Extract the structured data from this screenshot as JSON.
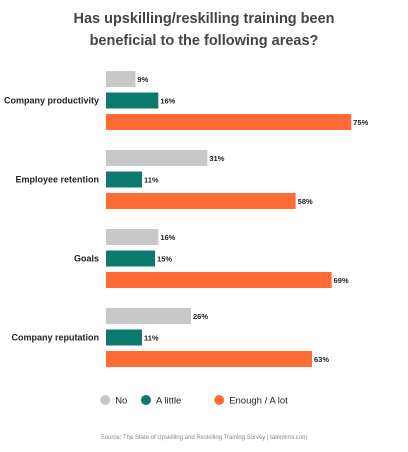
{
  "colors": {
    "no": "#c8c8c8",
    "a_little": "#0b7a6d",
    "enough": "#ff6a35"
  },
  "chart_data": {
    "type": "bar",
    "orientation": "horizontal",
    "title_lines": [
      "Has upskilling/reskilling training been",
      "beneficial to the following areas?"
    ],
    "categories": [
      "Company productivity",
      "Employee retention",
      "Goals",
      "Company reputation"
    ],
    "series": [
      {
        "name": "No",
        "values": [
          9,
          31,
          16,
          26
        ],
        "color": "#c8c8c8"
      },
      {
        "name": "A little",
        "values": [
          16,
          11,
          15,
          11
        ],
        "color": "#0b7a6d"
      },
      {
        "name": "Enough / A lot",
        "values": [
          75,
          58,
          69,
          63
        ],
        "color": "#ff6a35"
      }
    ],
    "value_suffix": "%",
    "xlim": [
      0,
      100
    ],
    "grid": false,
    "legend_position": "bottom-center",
    "source": "Source: The State of Upskilling and Reskilling Training Survey  |  talentlms.com"
  }
}
